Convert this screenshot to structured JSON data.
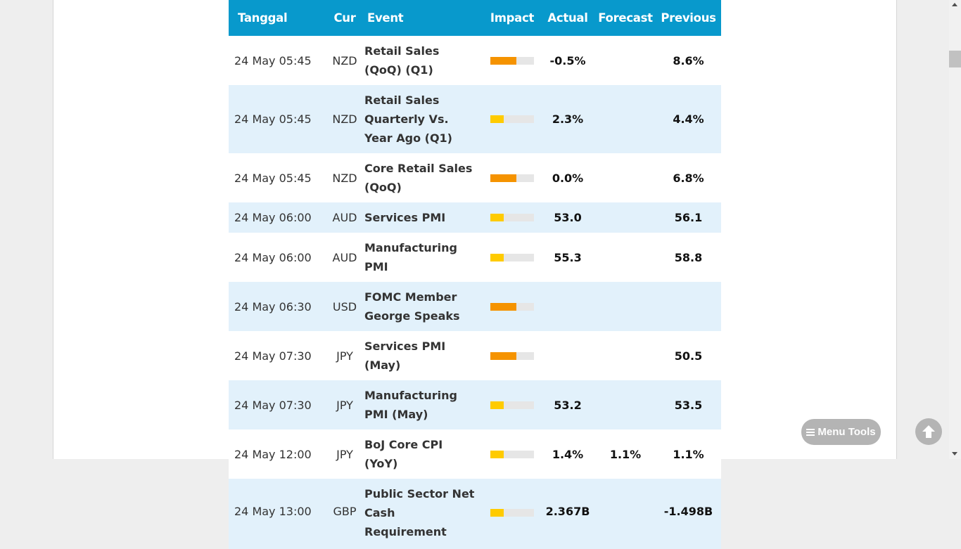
{
  "columns": {
    "date": "Tanggal",
    "currency": "Cur",
    "event": "Event",
    "impact": "Impact",
    "actual": "Actual",
    "forecast": "Forecast",
    "previous": "Previous"
  },
  "impact_levels": {
    "medium": {
      "fill_fraction": 0.6,
      "color": "#f59300"
    },
    "low": {
      "fill_fraction": 0.3,
      "color": "#ffcb00"
    }
  },
  "events": [
    {
      "date": "24 May 05:45",
      "currency": "NZD",
      "event": "Retail Sales (QoQ) (Q1)",
      "impact": "medium",
      "actual": "-0.5%",
      "forecast": "",
      "previous": "8.6%"
    },
    {
      "date": "24 May 05:45",
      "currency": "NZD",
      "event": "Retail Sales Quarterly Vs. Year Ago (Q1)",
      "impact": "low",
      "actual": "2.3%",
      "forecast": "",
      "previous": "4.4%"
    },
    {
      "date": "24 May 05:45",
      "currency": "NZD",
      "event": "Core Retail Sales (QoQ)",
      "impact": "medium",
      "actual": "0.0%",
      "forecast": "",
      "previous": "6.8%"
    },
    {
      "date": "24 May 06:00",
      "currency": "AUD",
      "event": "Services PMI",
      "impact": "low",
      "actual": "53.0",
      "forecast": "",
      "previous": "56.1"
    },
    {
      "date": "24 May 06:00",
      "currency": "AUD",
      "event": "Manufacturing PMI",
      "impact": "low",
      "actual": "55.3",
      "forecast": "",
      "previous": "58.8"
    },
    {
      "date": "24 May 06:30",
      "currency": "USD",
      "event": "FOMC Member George Speaks",
      "impact": "medium",
      "actual": "",
      "forecast": "",
      "previous": ""
    },
    {
      "date": "24 May 07:30",
      "currency": "JPY",
      "event": "Services PMI (May)",
      "impact": "medium",
      "actual": "",
      "forecast": "",
      "previous": "50.5"
    },
    {
      "date": "24 May 07:30",
      "currency": "JPY",
      "event": "Manufacturing PMI (May)",
      "impact": "low",
      "actual": "53.2",
      "forecast": "",
      "previous": "53.5"
    },
    {
      "date": "24 May 12:00",
      "currency": "JPY",
      "event": "BoJ Core CPI (YoY)",
      "impact": "low",
      "actual": "1.4%",
      "forecast": "1.1%",
      "previous": "1.1%"
    },
    {
      "date": "24 May 13:00",
      "currency": "GBP",
      "event": "Public Sector Net Cash Requirement",
      "impact": "low",
      "actual": "2.367B",
      "forecast": "",
      "previous": "-1.498B"
    }
  ],
  "menu_tools_label": "Menu Tools",
  "icons": {
    "menu": "hamburger-icon",
    "scroll_top": "arrow-up-circle-icon"
  }
}
